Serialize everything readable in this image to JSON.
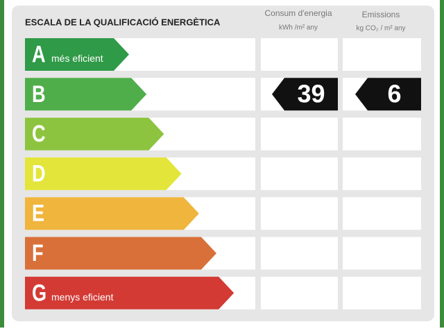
{
  "header": {
    "title": "ESCALA DE LA QUALIFICACIÓ ENERGÈTICA",
    "columns": [
      {
        "name": "Consum d'energia",
        "unit": "kWh /m² any"
      },
      {
        "name": "Emissions",
        "unit": "kg CO₂ / m² any"
      }
    ]
  },
  "rows": [
    {
      "letter": "A",
      "note": "més eficient",
      "color": "#2f9a47"
    },
    {
      "letter": "B",
      "color": "#4fae4a"
    },
    {
      "letter": "C",
      "color": "#8dc43f"
    },
    {
      "letter": "D",
      "color": "#e3e53a"
    },
    {
      "letter": "E",
      "color": "#efb53c"
    },
    {
      "letter": "F",
      "color": "#d9703a"
    },
    {
      "letter": "G",
      "note": "menys eficient",
      "color": "#d33a34"
    }
  ],
  "rating": {
    "class": "B",
    "consumption": 39,
    "emissions": 6
  }
}
